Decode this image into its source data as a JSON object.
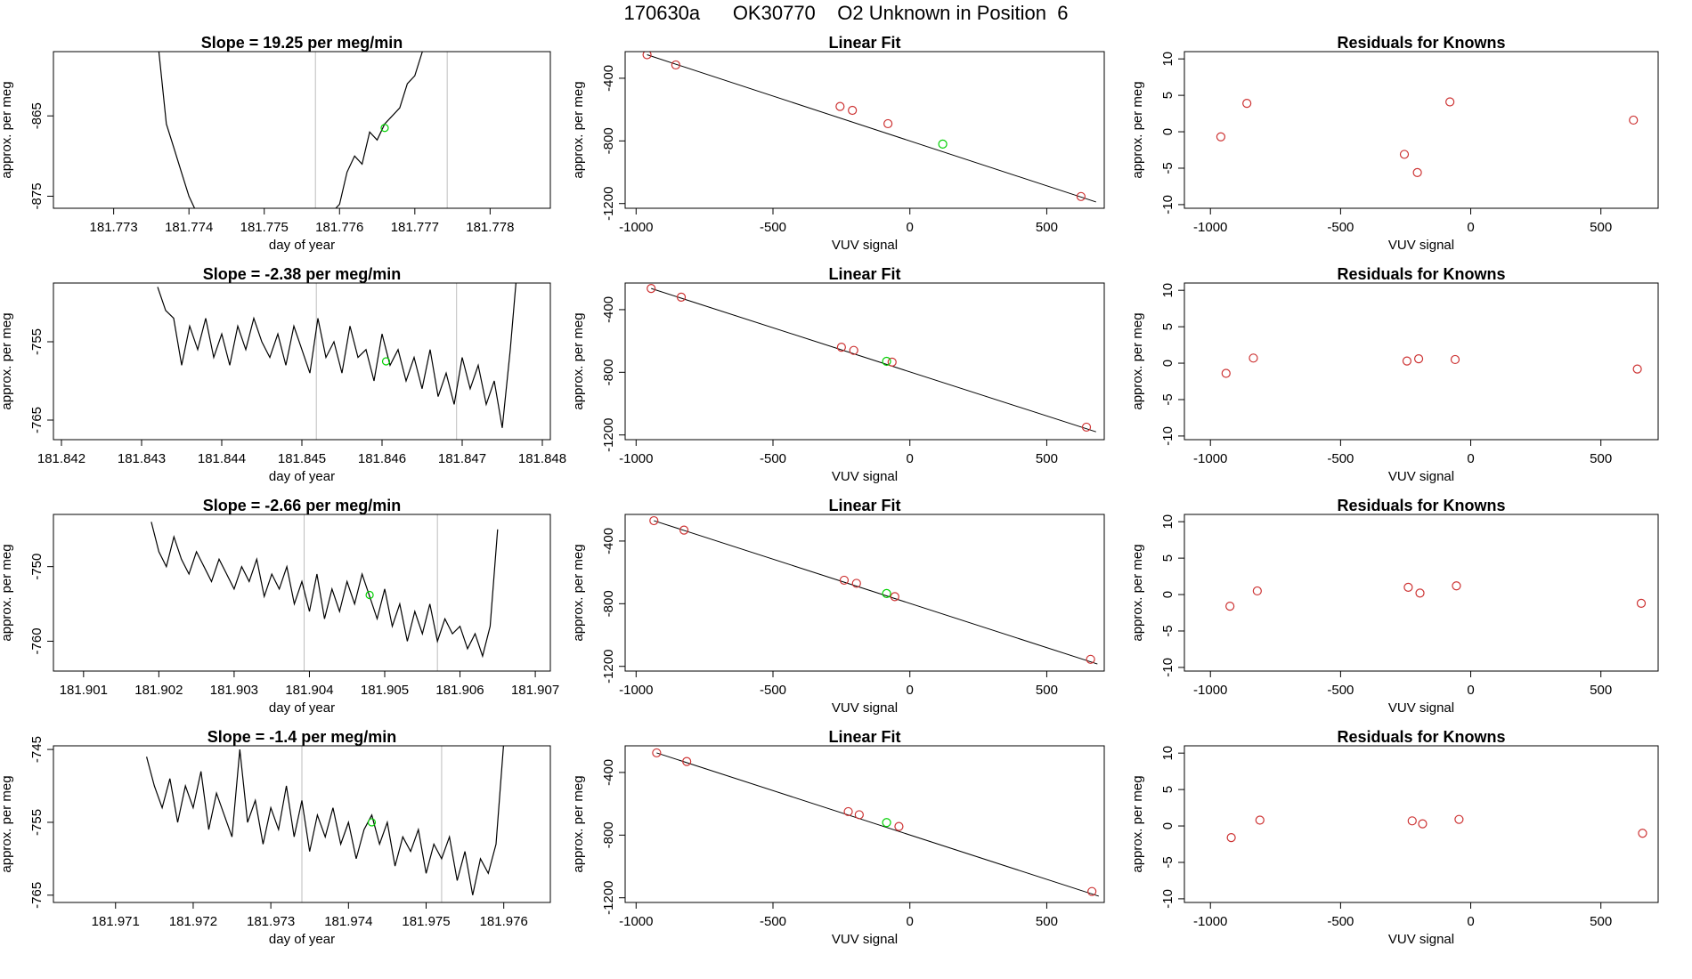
{
  "title": "170630a      OK30770    O2 Unknown in Position  6",
  "colors": {
    "line": "#000000",
    "known": "#cd3333",
    "unknown": "#00d000",
    "vline": "#bebebe"
  },
  "chart_data": [
    {
      "type": "line",
      "title": "Slope =  19.25  per meg/min",
      "xlabel": "day of year",
      "ylabel": "approx. per meg",
      "xlim": [
        181.7722,
        181.7788
      ],
      "ylim": [
        -876.5,
        -857
      ],
      "xticks": [
        "181.773",
        "181.774",
        "181.775",
        "181.776",
        "181.777",
        "181.778"
      ],
      "yticks": [
        "-865",
        "-875"
      ],
      "vlines": [
        181.77568,
        181.77743
      ],
      "marker": [
        181.7766,
        -866.5
      ],
      "series_x": [
        181.7736,
        181.7737,
        181.7738,
        181.7739,
        181.774,
        181.7741,
        181.7742,
        181.7743,
        181.7744,
        181.7745,
        181.7746,
        181.7747,
        181.7748,
        181.7749,
        181.775,
        181.7751,
        181.7752,
        181.7753,
        181.7754,
        181.7755,
        181.7756,
        181.7757,
        181.7758,
        181.7759,
        181.776,
        181.7761,
        181.7762,
        181.7763,
        181.7764,
        181.7765,
        181.7766,
        181.7767,
        181.7768,
        181.7769,
        181.777,
        181.7771
      ],
      "series_y": [
        -857,
        -866,
        -869,
        -872,
        -875,
        -877,
        -877,
        -877,
        -877,
        -877,
        -877,
        -877,
        -877,
        -877,
        -877,
        -877,
        -877,
        -877,
        -877,
        -877,
        -877,
        -877,
        -877,
        -877,
        -876,
        -872,
        -870,
        -871,
        -867,
        -868,
        -866,
        -865,
        -864,
        -861,
        -860,
        -857
      ]
    },
    {
      "type": "scatter",
      "title": "Linear Fit",
      "xlabel": "VUV signal",
      "ylabel": "approx. per meg",
      "xlim": [
        -1040,
        710
      ],
      "ylim": [
        -1230,
        -230
      ],
      "xticks": [
        "-1000",
        "-500",
        "0",
        "500"
      ],
      "yticks": [
        "-400",
        "-800",
        "-1200"
      ],
      "fit_line": [
        [
          -960,
          -250
        ],
        [
          680,
          -1190
        ]
      ],
      "knowns": [
        [
          -960,
          -250
        ],
        [
          -855,
          -315
        ],
        [
          -255,
          -580
        ],
        [
          -210,
          -605
        ],
        [
          -80,
          -690
        ],
        [
          625,
          -1155
        ]
      ],
      "unknown": [
        [
          120,
          -820
        ]
      ]
    },
    {
      "type": "scatter",
      "title": "Residuals for Knowns",
      "xlabel": "VUV signal",
      "ylabel": "approx. per meg",
      "xlim": [
        -1100,
        720
      ],
      "ylim": [
        -10.5,
        11
      ],
      "xticks": [
        "-1000",
        "-500",
        "0",
        "500"
      ],
      "yticks": [
        "10",
        "5",
        "0",
        "-5",
        "-10"
      ],
      "knowns": [
        [
          -960,
          -0.7
        ],
        [
          -860,
          3.9
        ],
        [
          -255,
          -3.1
        ],
        [
          -205,
          -5.6
        ],
        [
          -80,
          4.1
        ],
        [
          625,
          1.6
        ]
      ]
    },
    {
      "type": "line",
      "title": "Slope =  -2.38  per meg/min",
      "xlabel": "day of year",
      "ylabel": "approx. per meg",
      "xlim": [
        181.8419,
        181.8481
      ],
      "ylim": [
        -767.5,
        -747.5
      ],
      "xticks": [
        "181.842",
        "181.843",
        "181.844",
        "181.845",
        "181.846",
        "181.847",
        "181.848"
      ],
      "yticks": [
        "-755",
        "-765"
      ],
      "vlines": [
        181.84518,
        181.84693
      ],
      "marker": [
        181.84605,
        -757.5
      ],
      "series_x": [
        181.8432,
        181.8433,
        181.8434,
        181.8435,
        181.8436,
        181.8437,
        181.8438,
        181.8439,
        181.844,
        181.8441,
        181.8442,
        181.8443,
        181.8444,
        181.8445,
        181.8446,
        181.8447,
        181.8448,
        181.8449,
        181.845,
        181.8451,
        181.8452,
        181.8453,
        181.8454,
        181.8455,
        181.8456,
        181.8457,
        181.8458,
        181.8459,
        181.846,
        181.8461,
        181.8462,
        181.8463,
        181.8464,
        181.8465,
        181.8466,
        181.8467,
        181.8468,
        181.8469,
        181.847,
        181.8471,
        181.8472,
        181.8473,
        181.8474,
        181.8475,
        181.8476,
        181.8477
      ],
      "series_y": [
        -748,
        -751,
        -752,
        -758,
        -753,
        -756,
        -752,
        -757,
        -754,
        -758,
        -753,
        -756,
        -752,
        -755,
        -757,
        -754,
        -758,
        -753,
        -756,
        -759,
        -752,
        -757,
        -755,
        -759,
        -753,
        -757,
        -756,
        -760,
        -754,
        -758,
        -756,
        -760,
        -757,
        -761,
        -756,
        -762,
        -759,
        -763,
        -757,
        -761,
        -758,
        -763,
        -760,
        -766,
        -756,
        -744
      ]
    },
    {
      "type": "scatter",
      "title": "Linear Fit",
      "xlabel": "VUV signal",
      "ylabel": "approx. per meg",
      "xlim": [
        -1040,
        710
      ],
      "ylim": [
        -1230,
        -230
      ],
      "xticks": [
        "-1000",
        "-500",
        "0",
        "500"
      ],
      "yticks": [
        "-400",
        "-800",
        "-1200"
      ],
      "fit_line": [
        [
          -945,
          -265
        ],
        [
          680,
          -1180
        ]
      ],
      "knowns": [
        [
          -945,
          -265
        ],
        [
          -835,
          -320
        ],
        [
          -250,
          -640
        ],
        [
          -205,
          -660
        ],
        [
          -65,
          -735
        ],
        [
          645,
          -1150
        ]
      ],
      "unknown": [
        [
          -85,
          -730
        ]
      ]
    },
    {
      "type": "scatter",
      "title": "Residuals for Knowns",
      "xlabel": "VUV signal",
      "ylabel": "approx. per meg",
      "xlim": [
        -1100,
        720
      ],
      "ylim": [
        -10.5,
        11
      ],
      "xticks": [
        "-1000",
        "-500",
        "0",
        "500"
      ],
      "yticks": [
        "10",
        "5",
        "0",
        "-5",
        "-10"
      ],
      "knowns": [
        [
          -940,
          -1.4
        ],
        [
          -835,
          0.7
        ],
        [
          -245,
          0.3
        ],
        [
          -200,
          0.6
        ],
        [
          -60,
          0.5
        ],
        [
          640,
          -0.8
        ]
      ]
    },
    {
      "type": "line",
      "title": "Slope =  -2.66  per meg/min",
      "xlabel": "day of year",
      "ylabel": "approx. per meg",
      "xlim": [
        181.9006,
        181.9072
      ],
      "ylim": [
        -764,
        -743
      ],
      "xticks": [
        "181.901",
        "181.902",
        "181.903",
        "181.904",
        "181.905",
        "181.906",
        "181.907"
      ],
      "yticks": [
        "-750",
        "-760"
      ],
      "vlines": [
        181.90393,
        181.9057
      ],
      "marker": [
        181.9048,
        -753.8
      ],
      "series_x": [
        181.9019,
        181.902,
        181.9021,
        181.9022,
        181.9023,
        181.9024,
        181.9025,
        181.9026,
        181.9027,
        181.9028,
        181.9029,
        181.903,
        181.9031,
        181.9032,
        181.9033,
        181.9034,
        181.9035,
        181.9036,
        181.9037,
        181.9038,
        181.9039,
        181.904,
        181.9041,
        181.9042,
        181.9043,
        181.9044,
        181.9045,
        181.9046,
        181.9047,
        181.9048,
        181.9049,
        181.905,
        181.9051,
        181.9052,
        181.9053,
        181.9054,
        181.9055,
        181.9056,
        181.9057,
        181.9058,
        181.9059,
        181.906,
        181.9061,
        181.9062,
        181.9063,
        181.9064,
        181.9065
      ],
      "series_y": [
        -744,
        -748,
        -750,
        -746,
        -749,
        -751,
        -748,
        -750,
        -752,
        -749,
        -751,
        -753,
        -750,
        -752,
        -749,
        -754,
        -751,
        -753,
        -750,
        -755,
        -752,
        -756,
        -751,
        -757,
        -753,
        -756,
        -752,
        -755,
        -751,
        -754,
        -757,
        -753,
        -758,
        -755,
        -760,
        -756,
        -759,
        -755,
        -760,
        -757,
        -759,
        -758,
        -761,
        -759,
        -762,
        -758,
        -745
      ]
    },
    {
      "type": "scatter",
      "title": "Linear Fit",
      "xlabel": "VUV signal",
      "ylabel": "approx. per meg",
      "xlim": [
        -1040,
        710
      ],
      "ylim": [
        -1230,
        -230
      ],
      "xticks": [
        "-1000",
        "-500",
        "0",
        "500"
      ],
      "yticks": [
        "-400",
        "-800",
        "-1200"
      ],
      "fit_line": [
        [
          -935,
          -270
        ],
        [
          685,
          -1185
        ]
      ],
      "knowns": [
        [
          -935,
          -270
        ],
        [
          -825,
          -330
        ],
        [
          -240,
          -650
        ],
        [
          -195,
          -670
        ],
        [
          -55,
          -755
        ],
        [
          660,
          -1155
        ]
      ],
      "unknown": [
        [
          -85,
          -735
        ]
      ]
    },
    {
      "type": "scatter",
      "title": "Residuals for Knowns",
      "xlabel": "VUV signal",
      "ylabel": "approx. per meg",
      "xlim": [
        -1100,
        720
      ],
      "ylim": [
        -10.5,
        11
      ],
      "xticks": [
        "-1000",
        "-500",
        "0",
        "500"
      ],
      "yticks": [
        "10",
        "5",
        "0",
        "-5",
        "-10"
      ],
      "knowns": [
        [
          -925,
          -1.6
        ],
        [
          -820,
          0.5
        ],
        [
          -240,
          1.0
        ],
        [
          -195,
          0.2
        ],
        [
          -55,
          1.2
        ],
        [
          655,
          -1.2
        ]
      ]
    },
    {
      "type": "line",
      "title": "Slope =  -1.4  per meg/min",
      "xlabel": "day of year",
      "ylabel": "approx. per meg",
      "xlim": [
        181.9702,
        181.9766
      ],
      "ylim": [
        -766,
        -744.5
      ],
      "xticks": [
        "181.971",
        "181.972",
        "181.973",
        "181.974",
        "181.975",
        "181.976"
      ],
      "yticks": [
        "-745",
        "-755",
        "-765"
      ],
      "vlines": [
        181.9734,
        181.9752
      ],
      "marker": [
        181.9743,
        -755
      ],
      "series_x": [
        181.9714,
        181.9715,
        181.9716,
        181.9717,
        181.9718,
        181.9719,
        181.972,
        181.9721,
        181.9722,
        181.9723,
        181.9724,
        181.9725,
        181.9726,
        181.9727,
        181.9728,
        181.9729,
        181.973,
        181.9731,
        181.9732,
        181.9733,
        181.9734,
        181.9735,
        181.9736,
        181.9737,
        181.9738,
        181.9739,
        181.974,
        181.9741,
        181.9742,
        181.9743,
        181.9744,
        181.9745,
        181.9746,
        181.9747,
        181.9748,
        181.9749,
        181.975,
        181.9751,
        181.9752,
        181.9753,
        181.9754,
        181.9755,
        181.9756,
        181.9757,
        181.9758,
        181.9759,
        181.976
      ],
      "series_y": [
        -746,
        -750,
        -753,
        -749,
        -755,
        -750,
        -753,
        -748,
        -756,
        -751,
        -754,
        -757,
        -745,
        -755,
        -752,
        -758,
        -753,
        -756,
        -750,
        -757,
        -752,
        -759,
        -754,
        -757,
        -753,
        -758,
        -755,
        -760,
        -756,
        -754,
        -758,
        -755,
        -761,
        -757,
        -759,
        -756,
        -762,
        -758,
        -760,
        -757,
        -763,
        -759,
        -765,
        -760,
        -762,
        -758,
        -744
      ]
    },
    {
      "type": "scatter",
      "title": "Linear Fit",
      "xlabel": "VUV signal",
      "ylabel": "approx. per meg",
      "xlim": [
        -1040,
        710
      ],
      "ylim": [
        -1230,
        -230
      ],
      "xticks": [
        "-1000",
        "-500",
        "0",
        "500"
      ],
      "yticks": [
        "-400",
        "-800",
        "-1200"
      ],
      "fit_line": [
        [
          -925,
          -275
        ],
        [
          690,
          -1190
        ]
      ],
      "knowns": [
        [
          -925,
          -275
        ],
        [
          -815,
          -330
        ],
        [
          -225,
          -650
        ],
        [
          -185,
          -670
        ],
        [
          -40,
          -745
        ],
        [
          665,
          -1160
        ]
      ],
      "unknown": [
        [
          -85,
          -720
        ]
      ]
    },
    {
      "type": "scatter",
      "title": "Residuals for Knowns",
      "xlabel": "VUV signal",
      "ylabel": "approx. per meg",
      "xlim": [
        -1100,
        720
      ],
      "ylim": [
        -10.5,
        11
      ],
      "xticks": [
        "-1000",
        "-500",
        "0",
        "500"
      ],
      "yticks": [
        "10",
        "5",
        "0",
        "-5",
        "-10"
      ],
      "knowns": [
        [
          -920,
          -1.6
        ],
        [
          -810,
          0.8
        ],
        [
          -225,
          0.7
        ],
        [
          -185,
          0.3
        ],
        [
          -45,
          0.9
        ],
        [
          660,
          -1.0
        ]
      ]
    }
  ]
}
